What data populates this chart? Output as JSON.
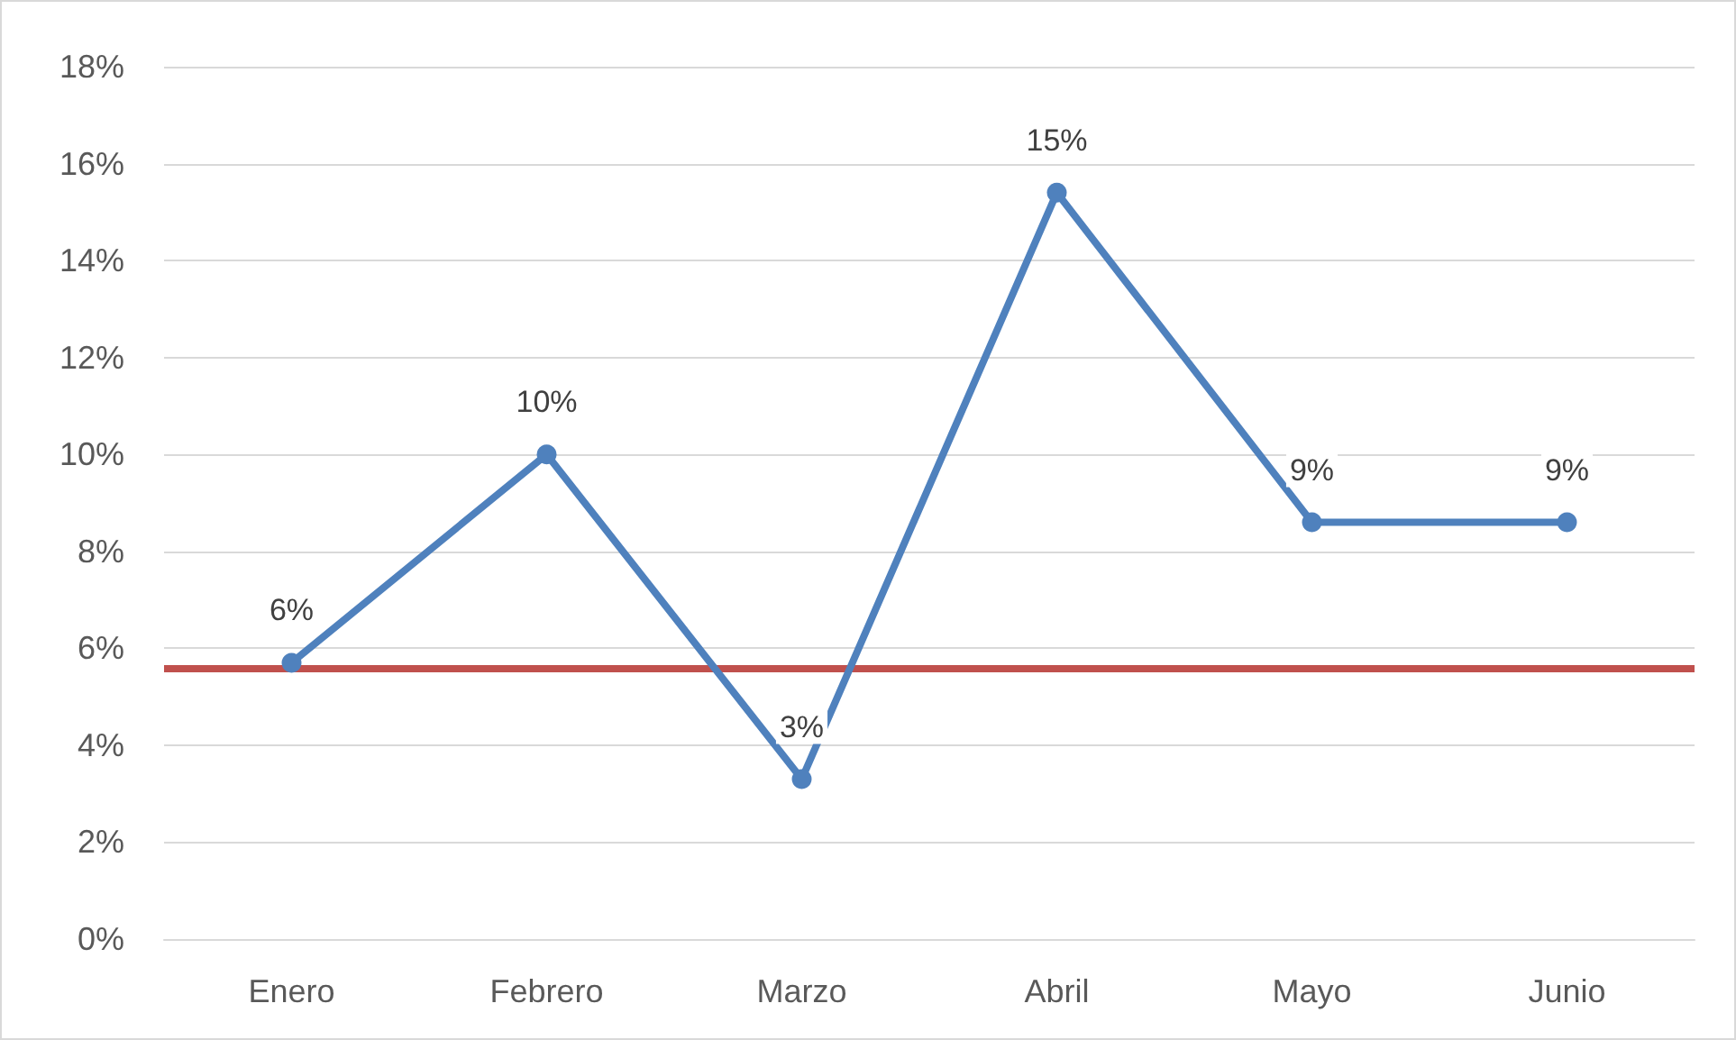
{
  "chart_data": {
    "type": "line",
    "categories": [
      "Enero",
      "Febrero",
      "Marzo",
      "Abril",
      "Mayo",
      "Junio"
    ],
    "series": [
      {
        "color": "#4f81bd",
        "values": [
          5.7,
          10,
          3.3,
          15.4,
          8.6,
          8.6
        ],
        "value_labels": [
          "6%",
          "10%",
          "3%",
          "15%",
          "9%",
          "9%"
        ]
      }
    ],
    "ylim": [
      0,
      18
    ],
    "yticks": [
      {
        "value": 0,
        "label": "0%"
      },
      {
        "value": 2,
        "label": "2%"
      },
      {
        "value": 4,
        "label": "4%"
      },
      {
        "value": 6,
        "label": "6%"
      },
      {
        "value": 8,
        "label": "8%"
      },
      {
        "value": 10,
        "label": "10%"
      },
      {
        "value": 12,
        "label": "12%"
      },
      {
        "value": 14,
        "label": "14%"
      },
      {
        "value": 16,
        "label": "16%"
      },
      {
        "value": 18,
        "label": "18%"
      }
    ],
    "ref_lines": [
      {
        "axis": "y",
        "value": 5.6,
        "color": "#c0504d",
        "line_style": "solid"
      }
    ],
    "grid": "y",
    "marker": "circle",
    "line_style": "solid"
  }
}
